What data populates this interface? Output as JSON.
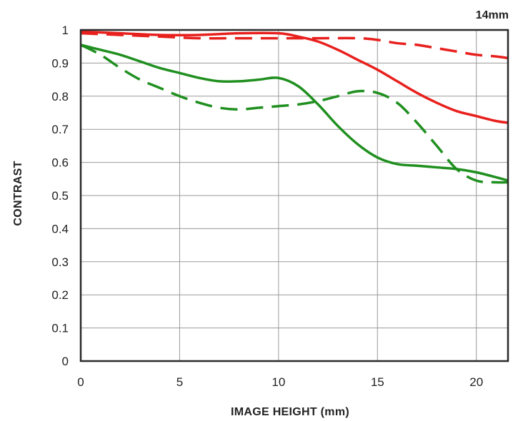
{
  "chart_data": {
    "type": "line",
    "annotation": "14mm",
    "xlabel": "IMAGE HEIGHT (mm)",
    "ylabel": "CONTRAST",
    "xlim": [
      0,
      21.6
    ],
    "ylim": [
      0,
      1
    ],
    "x_ticks": [
      0,
      5,
      10,
      15,
      20
    ],
    "y_ticks": [
      0,
      0.1,
      0.2,
      0.3,
      0.4,
      0.5,
      0.6,
      0.7,
      0.8,
      0.9,
      1
    ],
    "y_tick_labels": [
      "0",
      "0.1",
      "0.2",
      "0.3",
      "0.4",
      "0.5",
      "0.6",
      "0.7",
      "0.8",
      "0.9",
      "1"
    ],
    "grid": true,
    "series": [
      {
        "color": "#e8201d",
        "dash": "solid",
        "x": [
          0,
          2,
          4,
          6,
          8,
          10,
          11,
          12,
          13,
          14,
          15,
          16,
          17,
          18,
          19,
          20,
          21,
          21.6
        ],
        "y": [
          0.995,
          0.99,
          0.985,
          0.985,
          0.99,
          0.99,
          0.98,
          0.965,
          0.94,
          0.91,
          0.88,
          0.845,
          0.81,
          0.78,
          0.755,
          0.74,
          0.725,
          0.72
        ]
      },
      {
        "color": "#e8201d",
        "dash": "dashed",
        "x": [
          0,
          2,
          4,
          6,
          8,
          10,
          12,
          14,
          15,
          16,
          17,
          18,
          19,
          20,
          21,
          21.6
        ],
        "y": [
          0.99,
          0.985,
          0.98,
          0.975,
          0.975,
          0.975,
          0.975,
          0.975,
          0.97,
          0.96,
          0.955,
          0.945,
          0.935,
          0.925,
          0.92,
          0.915
        ]
      },
      {
        "color": "#1f8f1f",
        "dash": "solid",
        "x": [
          0,
          1,
          2,
          3,
          4,
          5,
          6,
          7,
          8,
          9,
          10,
          11,
          12,
          13,
          14,
          15,
          16,
          17,
          18,
          19,
          20,
          21,
          21.6
        ],
        "y": [
          0.955,
          0.94,
          0.925,
          0.905,
          0.885,
          0.87,
          0.855,
          0.845,
          0.845,
          0.85,
          0.855,
          0.83,
          0.775,
          0.71,
          0.655,
          0.615,
          0.595,
          0.59,
          0.585,
          0.58,
          0.57,
          0.555,
          0.545
        ]
      },
      {
        "color": "#1f8f1f",
        "dash": "dashed",
        "x": [
          0,
          1,
          2,
          3,
          4,
          5,
          6,
          7,
          8,
          9,
          10,
          11,
          12,
          13,
          14,
          15,
          16,
          17,
          18,
          19,
          20,
          21,
          21.6
        ],
        "y": [
          0.955,
          0.925,
          0.885,
          0.85,
          0.825,
          0.8,
          0.78,
          0.765,
          0.76,
          0.765,
          0.77,
          0.775,
          0.785,
          0.8,
          0.815,
          0.81,
          0.78,
          0.72,
          0.65,
          0.58,
          0.545,
          0.54,
          0.54
        ]
      }
    ]
  }
}
